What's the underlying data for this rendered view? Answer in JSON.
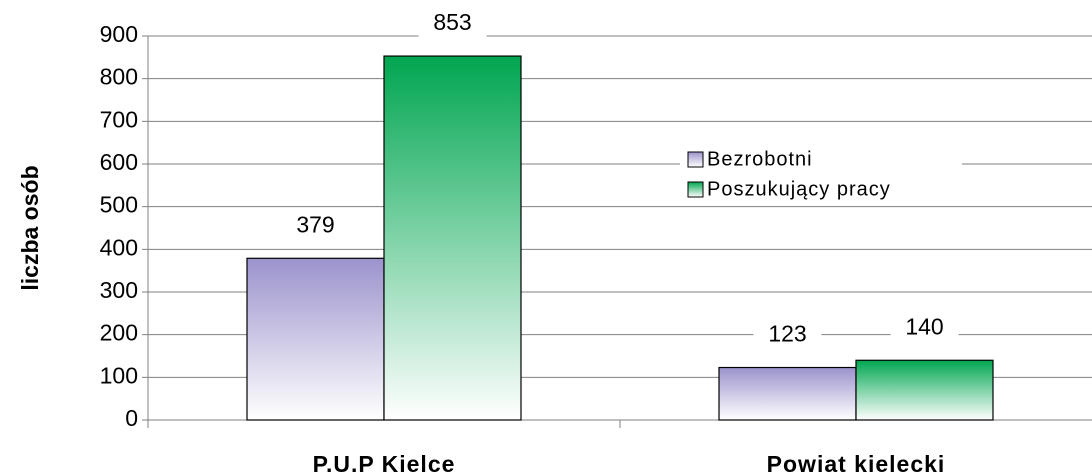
{
  "chart_data": {
    "type": "bar",
    "y_label": "liczba osób",
    "categories": [
      "P.U.P Kielce",
      "Powiat kielecki"
    ],
    "series": [
      {
        "name": "Bezrobotni",
        "color": "#9b93cc",
        "values": [
          379,
          123
        ]
      },
      {
        "name": "Poszukujący pracy",
        "color": "#00a650",
        "values": [
          853,
          140
        ]
      }
    ],
    "ylim": [
      0,
      900
    ],
    "yticks": [
      0,
      100,
      200,
      300,
      400,
      500,
      600,
      700,
      800,
      900
    ],
    "grid": true,
    "legend": "right"
  }
}
